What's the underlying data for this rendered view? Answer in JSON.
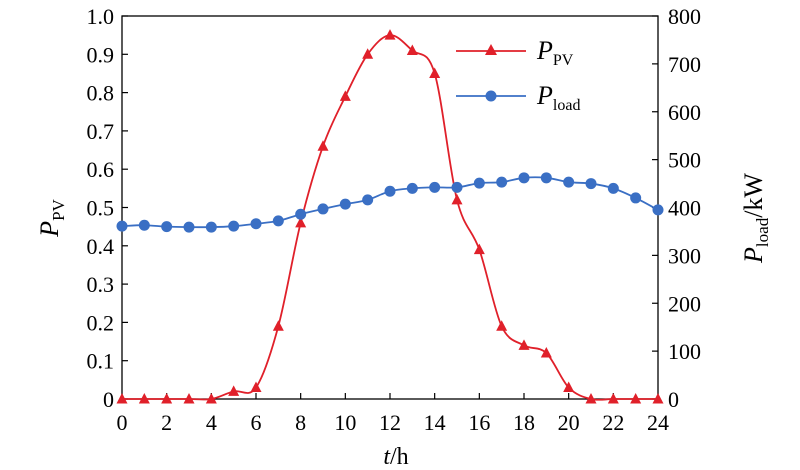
{
  "chart_data": {
    "type": "line",
    "x": [
      0,
      1,
      2,
      3,
      4,
      5,
      6,
      7,
      8,
      9,
      10,
      11,
      12,
      13,
      14,
      15,
      16,
      17,
      18,
      19,
      20,
      21,
      22,
      23,
      24
    ],
    "xlim": [
      0,
      24
    ],
    "xticks": [
      "0",
      "2",
      "4",
      "6",
      "8",
      "10",
      "12",
      "14",
      "16",
      "18",
      "20",
      "22",
      "24"
    ],
    "xlabel": {
      "var": "t",
      "unit": "/h"
    },
    "ylim_left": [
      0,
      1.0
    ],
    "yticks_left": [
      "0",
      "0.1",
      "0.2",
      "0.3",
      "0.4",
      "0.5",
      "0.6",
      "0.7",
      "0.8",
      "0.9",
      "1.0"
    ],
    "ylabel_left": {
      "main": "P",
      "sub": "PV"
    },
    "ylim_right": [
      0,
      800
    ],
    "yticks_right": [
      "0",
      "100",
      "200",
      "300",
      "400",
      "500",
      "600",
      "700",
      "800"
    ],
    "ylabel_right": {
      "main": "P",
      "sub": "load",
      "unit": "/kW"
    },
    "legend_position": "top-right",
    "series": [
      {
        "name": "P",
        "sub": "PV",
        "axis": "left",
        "color": "#e0202a",
        "marker": "triangle",
        "values": [
          0,
          0,
          0,
          0,
          0,
          0.02,
          0.03,
          0.19,
          0.46,
          0.66,
          0.79,
          0.9,
          0.95,
          0.91,
          0.85,
          0.52,
          0.39,
          0.19,
          0.14,
          0.12,
          0.03,
          0,
          0,
          0,
          0
        ]
      },
      {
        "name": "P",
        "sub": "load",
        "axis": "right",
        "color": "#3a6fc4",
        "marker": "circle",
        "values": [
          361,
          363,
          360,
          359,
          359,
          361,
          366,
          372,
          386,
          397,
          407,
          416,
          434,
          440,
          442,
          442,
          451,
          453,
          462,
          462,
          453,
          450,
          440,
          420,
          395
        ]
      }
    ]
  }
}
